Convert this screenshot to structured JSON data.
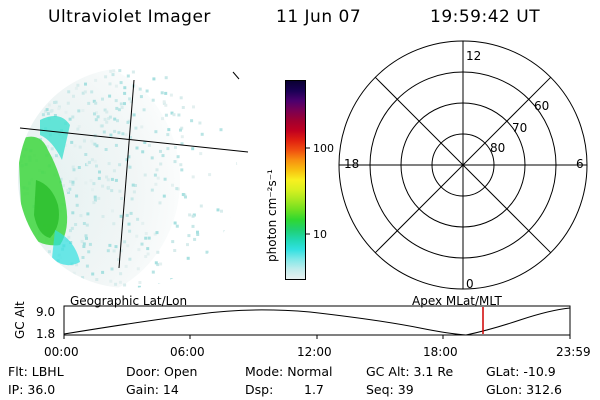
{
  "header": {
    "title": "Ultraviolet Imager",
    "date": "11 Jun 07",
    "time": "19:59:42 UT"
  },
  "colorbar": {
    "unit_label": "photon cm⁻²s⁻¹",
    "ticks": [
      "100",
      "10"
    ],
    "colors": [
      "#0a0033",
      "#1a0055",
      "#4b006e",
      "#7a0052",
      "#a00030",
      "#c00020",
      "#e02010",
      "#f05010",
      "#f89010",
      "#f8c010",
      "#f8f020",
      "#d8f020",
      "#a8e820",
      "#70e020",
      "#30d830",
      "#20d070",
      "#20d8b0",
      "#30e0e0",
      "#80e8e8",
      "#c0ecec",
      "#e8f0f0"
    ]
  },
  "polar_plot": {
    "mlt_labels": [
      "12",
      "18",
      "6",
      "0"
    ],
    "lat_labels": [
      "60",
      "70",
      "80"
    ]
  },
  "timeline": {
    "y_axis_label": "GC Alt",
    "y_ticks": [
      "9.0",
      "1.8"
    ],
    "left_caption": "Geographic Lat/Lon",
    "right_caption": "Apex MLat/MLT",
    "x_ticks": [
      "00:00",
      "06:00",
      "12:00",
      "18:00",
      "23:59"
    ],
    "marker_color": "#d00000"
  },
  "status": {
    "flt": "Flt: LBHL",
    "ip": "IP: 36.0",
    "door": "Door: Open",
    "gain": "Gain: 14",
    "mode": "Mode: Normal",
    "dsp_label": "Dsp:",
    "dsp_value": "1.7",
    "gc_alt": "GC Alt: 3.1 Re",
    "seq": "Seq: 39",
    "glat": "GLat: -10.9",
    "glon": "GLon: 312.6"
  }
}
